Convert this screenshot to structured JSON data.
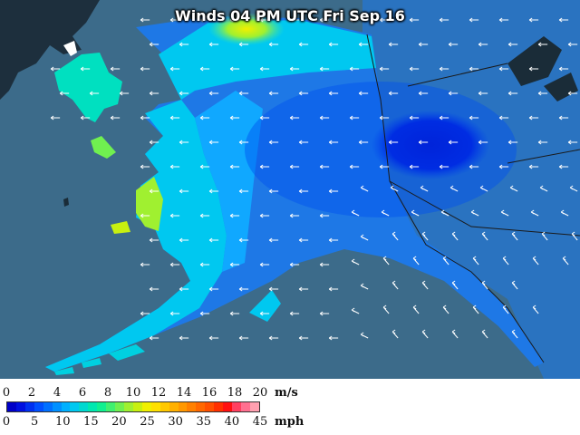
{
  "title": "Winds 04 PM UTC Fri Sep 16",
  "legend": {
    "ms_unit": "m/s",
    "mph_unit": "mph",
    "ms_ticks": [
      "0",
      "2",
      "4",
      "6",
      "8",
      "10",
      "12",
      "14",
      "16",
      "18",
      "20"
    ],
    "mph_ticks": [
      "0",
      "5",
      "10",
      "15",
      "20",
      "25",
      "30",
      "35",
      "40",
      "45"
    ],
    "colors": [
      "#0000c8",
      "#0010e0",
      "#0030f0",
      "#0050ff",
      "#0070ff",
      "#0090ff",
      "#00b0ff",
      "#00c8f0",
      "#00d8d0",
      "#00e8b0",
      "#10f090",
      "#40f070",
      "#70f050",
      "#a0f030",
      "#c8f010",
      "#f0f000",
      "#ffe000",
      "#ffc800",
      "#ffb000",
      "#ff9800",
      "#ff8000",
      "#ff6800",
      "#ff5000",
      "#ff3000",
      "#ff1010",
      "#ff4060",
      "#ff7090",
      "#ffa0b0"
    ]
  },
  "colors": {
    "ocean": "#3c6b8a",
    "land_dark": "#1a2c38",
    "boundary": "#1a1a1a"
  },
  "icons": [
    "wind-arrow-icon"
  ]
}
